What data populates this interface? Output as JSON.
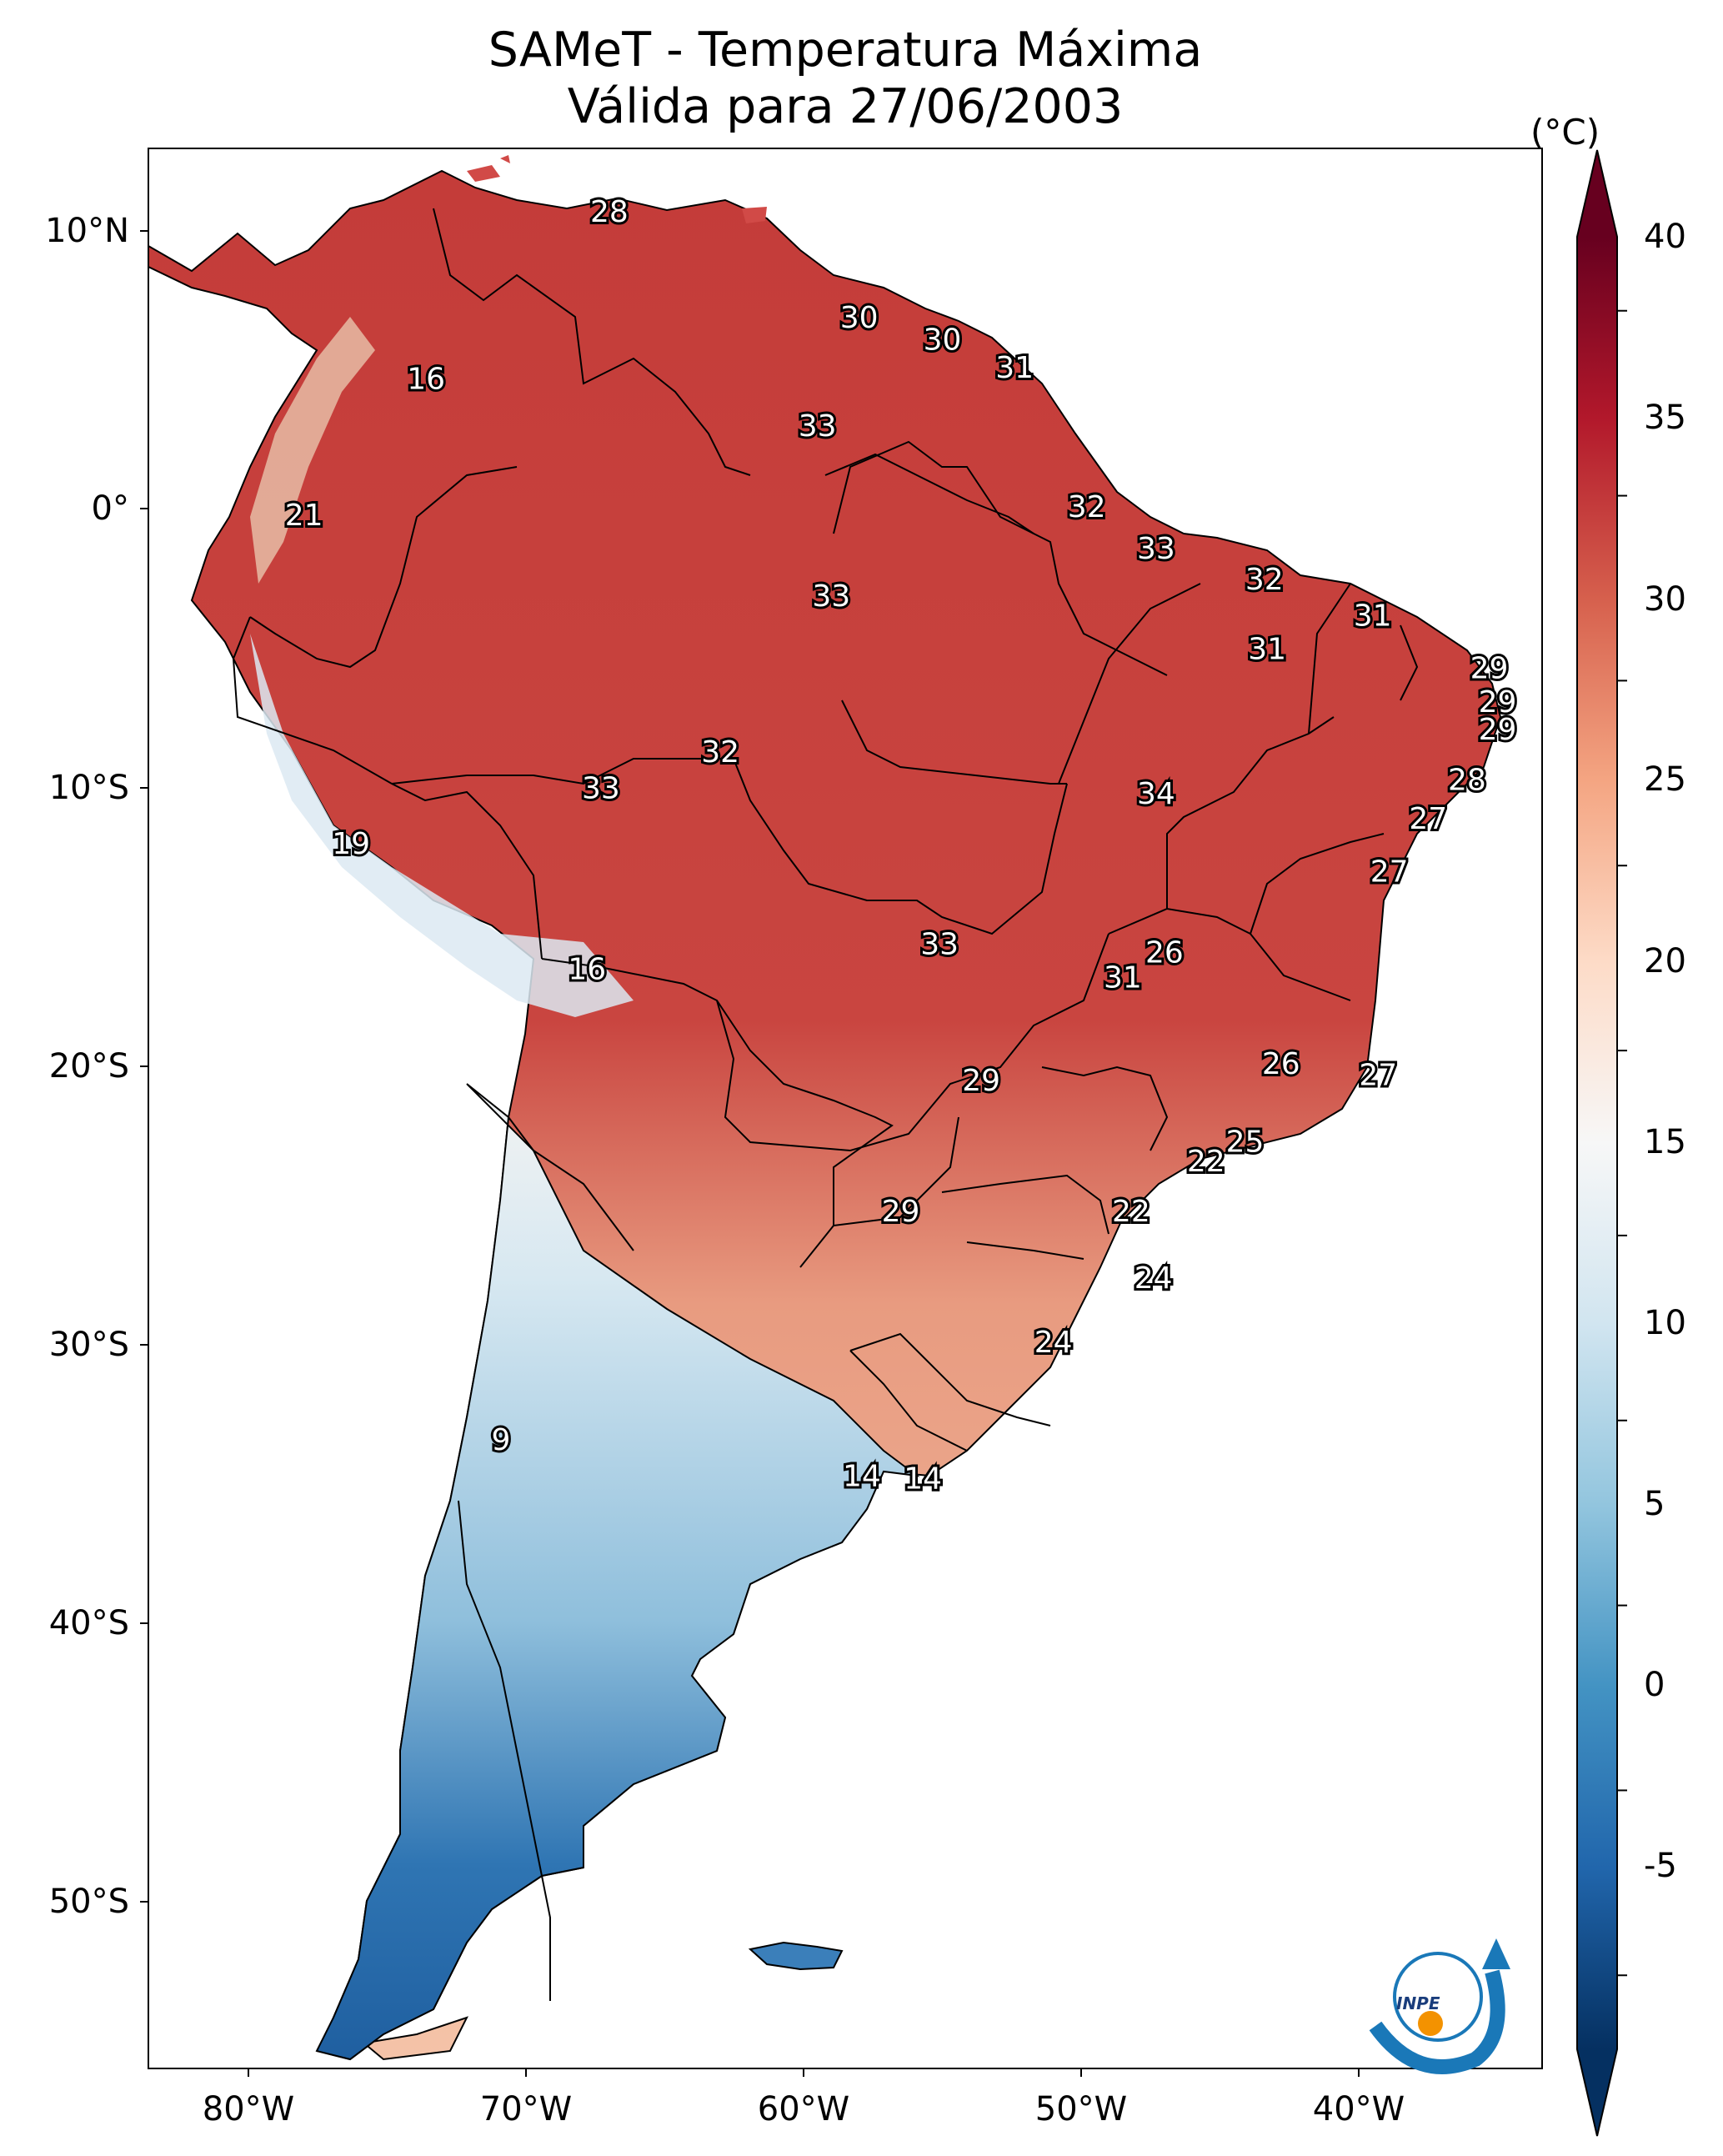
{
  "title_line1": "SAMeT - Temperatura Máxima",
  "title_line2": "Válida para 27/06/2003",
  "colorbar": {
    "unit": "(°C)",
    "min": -7,
    "max": 42,
    "ticks": [
      "40",
      "35",
      "30",
      "25",
      "20",
      "15",
      "10",
      "5",
      "0",
      "-5"
    ],
    "colors": [
      "#053061",
      "#2166ac",
      "#4393c3",
      "#92c5de",
      "#d1e5f0",
      "#f7f7f7",
      "#fddbc7",
      "#f4a582",
      "#d6604d",
      "#b2182b",
      "#67001f"
    ]
  },
  "axes": {
    "lat_ticks": [
      "10°N",
      "0°",
      "10°S",
      "20°S",
      "30°S",
      "40°S",
      "50°S"
    ],
    "lon_ticks": [
      "80°W",
      "70°W",
      "60°W",
      "50°W",
      "40°W"
    ]
  },
  "logo_text": "INPE",
  "labels": [
    {
      "text": "28",
      "lon": -67,
      "lat": 10.6
    },
    {
      "text": "30",
      "lon": -58,
      "lat": 6.8
    },
    {
      "text": "30",
      "lon": -55,
      "lat": 6.0
    },
    {
      "text": "31",
      "lon": -52.4,
      "lat": 5.0
    },
    {
      "text": "33",
      "lon": -59.5,
      "lat": 2.9
    },
    {
      "text": "16",
      "lon": -73.6,
      "lat": 4.6
    },
    {
      "text": "32",
      "lon": -49.8,
      "lat": 0.0
    },
    {
      "text": "21",
      "lon": -78,
      "lat": -0.3
    },
    {
      "text": "33",
      "lon": -47.3,
      "lat": -1.5
    },
    {
      "text": "32",
      "lon": -43.4,
      "lat": -2.6
    },
    {
      "text": "33",
      "lon": -59,
      "lat": -3.2
    },
    {
      "text": "31",
      "lon": -39.5,
      "lat": -3.9
    },
    {
      "text": "31",
      "lon": -43.3,
      "lat": -5.1
    },
    {
      "text": "29",
      "lon": -35.3,
      "lat": -5.8
    },
    {
      "text": "29",
      "lon": -35,
      "lat": -7.0
    },
    {
      "text": "29",
      "lon": -35,
      "lat": -8.0
    },
    {
      "text": "32",
      "lon": -63,
      "lat": -8.8
    },
    {
      "text": "33",
      "lon": -67.3,
      "lat": -10.1
    },
    {
      "text": "34",
      "lon": -47.3,
      "lat": -10.3
    },
    {
      "text": "28",
      "lon": -36.1,
      "lat": -9.8
    },
    {
      "text": "27",
      "lon": -37.5,
      "lat": -11.2
    },
    {
      "text": "19",
      "lon": -76.3,
      "lat": -12.1
    },
    {
      "text": "27",
      "lon": -38.9,
      "lat": -13.1
    },
    {
      "text": "26",
      "lon": -47,
      "lat": -16.0
    },
    {
      "text": "33",
      "lon": -55.1,
      "lat": -15.7
    },
    {
      "text": "31",
      "lon": -48.5,
      "lat": -16.9
    },
    {
      "text": "16",
      "lon": -67.8,
      "lat": -16.6
    },
    {
      "text": "26",
      "lon": -42.8,
      "lat": -20.0
    },
    {
      "text": "27",
      "lon": -39.3,
      "lat": -20.4
    },
    {
      "text": "29",
      "lon": -53.6,
      "lat": -20.6
    },
    {
      "text": "25",
      "lon": -44.1,
      "lat": -22.8
    },
    {
      "text": "22",
      "lon": -45.5,
      "lat": -23.5
    },
    {
      "text": "29",
      "lon": -56.5,
      "lat": -25.3
    },
    {
      "text": "22",
      "lon": -48.2,
      "lat": -25.3
    },
    {
      "text": "24",
      "lon": -47.4,
      "lat": -27.7
    },
    {
      "text": "24",
      "lon": -51,
      "lat": -30.0
    },
    {
      "text": "9",
      "lon": -70.9,
      "lat": -33.5
    },
    {
      "text": "14",
      "lon": -57.9,
      "lat": -34.8
    },
    {
      "text": "14",
      "lon": -55.7,
      "lat": -34.9
    }
  ]
}
